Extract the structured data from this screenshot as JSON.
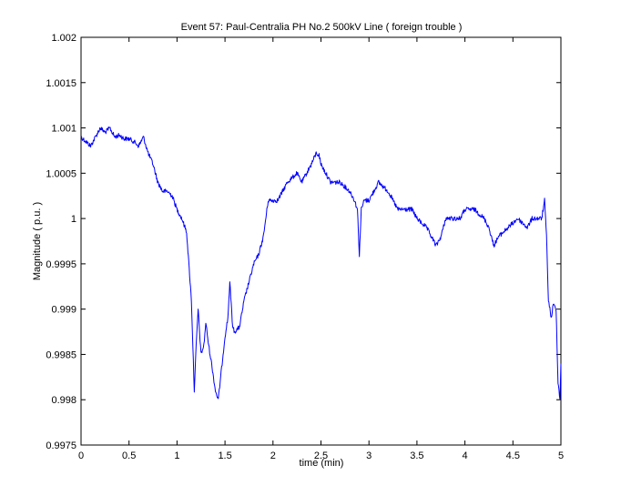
{
  "chart_data": {
    "type": "line",
    "title": "Event 57: Paul-Centralia PH No.2 500kV Line ( foreign trouble )",
    "xlabel": "time (min)",
    "ylabel": "Magnitude ( p.u. )",
    "xlim": [
      0,
      5
    ],
    "ylim": [
      0.9975,
      1.002
    ],
    "xticks": [
      0,
      0.5,
      1,
      1.5,
      2,
      2.5,
      3,
      3.5,
      4,
      4.5,
      5
    ],
    "xtick_labels": [
      "0",
      "0.5",
      "1",
      "1.5",
      "2",
      "2.5",
      "3",
      "3.5",
      "4",
      "4.5",
      "5"
    ],
    "yticks": [
      0.9975,
      0.998,
      0.9985,
      0.999,
      0.9995,
      1.0,
      1.0005,
      1.001,
      1.0015,
      1.002
    ],
    "ytick_labels": [
      "0.9975",
      "0.998",
      "0.9985",
      "0.999",
      "0.9995",
      "1",
      "1.0005",
      "1.001",
      "1.0015",
      "1.002"
    ],
    "grid": false,
    "series": [
      {
        "color": "#0000ff",
        "x": [
          0,
          0.05,
          0.1,
          0.15,
          0.2,
          0.25,
          0.3,
          0.35,
          0.4,
          0.45,
          0.5,
          0.55,
          0.6,
          0.65,
          0.7,
          0.75,
          0.8,
          0.85,
          0.9,
          0.95,
          1.0,
          1.05,
          1.1,
          1.15,
          1.18,
          1.2,
          1.22,
          1.25,
          1.28,
          1.3,
          1.33,
          1.36,
          1.4,
          1.43,
          1.46,
          1.5,
          1.53,
          1.55,
          1.58,
          1.6,
          1.65,
          1.7,
          1.75,
          1.8,
          1.85,
          1.9,
          1.95,
          2.0,
          2.05,
          2.1,
          2.15,
          2.2,
          2.25,
          2.3,
          2.35,
          2.4,
          2.45,
          2.48,
          2.5,
          2.55,
          2.6,
          2.65,
          2.7,
          2.75,
          2.8,
          2.85,
          2.88,
          2.9,
          2.92,
          2.95,
          3.0,
          3.05,
          3.1,
          3.15,
          3.2,
          3.25,
          3.3,
          3.35,
          3.4,
          3.45,
          3.5,
          3.55,
          3.6,
          3.65,
          3.7,
          3.75,
          3.8,
          3.85,
          3.9,
          3.95,
          4.0,
          4.05,
          4.1,
          4.15,
          4.2,
          4.25,
          4.3,
          4.35,
          4.4,
          4.45,
          4.5,
          4.55,
          4.6,
          4.65,
          4.7,
          4.75,
          4.8,
          4.83,
          4.85,
          4.87,
          4.9,
          4.92,
          4.95,
          4.97,
          4.99,
          5.0
        ],
        "y": [
          1.0009,
          1.00085,
          1.0008,
          1.0009,
          1.001,
          1.00095,
          1.001,
          1.0009,
          1.00092,
          1.00088,
          1.00088,
          1.00085,
          1.0008,
          1.0009,
          1.00072,
          1.0006,
          1.0004,
          1.0003,
          1.0003,
          1.00025,
          1.0001,
          1.0,
          0.99985,
          0.9991,
          0.9981,
          0.9986,
          0.999,
          0.9985,
          0.9986,
          0.99885,
          0.9986,
          0.9984,
          0.9981,
          0.998,
          0.9983,
          0.9987,
          0.9989,
          0.9993,
          0.9988,
          0.99875,
          0.9988,
          0.9991,
          0.9993,
          0.9995,
          0.9996,
          0.9998,
          1.0002,
          1.0002,
          1.0002,
          1.0003,
          1.0004,
          1.00045,
          1.0005,
          1.0004,
          1.0005,
          1.0006,
          1.00072,
          1.0007,
          1.0006,
          1.0005,
          1.0004,
          1.0004,
          1.0004,
          1.00035,
          1.0003,
          1.0002,
          1.0001,
          0.9996,
          1.0001,
          1.0002,
          1.0002,
          1.0003,
          1.0004,
          1.00035,
          1.0003,
          1.0002,
          1.0001,
          1.0001,
          1.0001,
          1.0001,
          1.0,
          0.99995,
          0.9999,
          0.9998,
          0.9997,
          0.9998,
          1.0,
          1.0,
          1.0,
          1.0,
          1.0001,
          1.0001,
          1.0001,
          1.00005,
          1.0,
          0.9999,
          0.9997,
          0.9998,
          0.99985,
          0.9999,
          0.99995,
          1.0,
          0.99995,
          0.9999,
          1.0,
          1.0,
          1.0,
          1.0002,
          0.9998,
          0.9991,
          0.9989,
          0.99905,
          0.999,
          0.9982,
          0.998,
          0.9984
        ]
      }
    ]
  }
}
